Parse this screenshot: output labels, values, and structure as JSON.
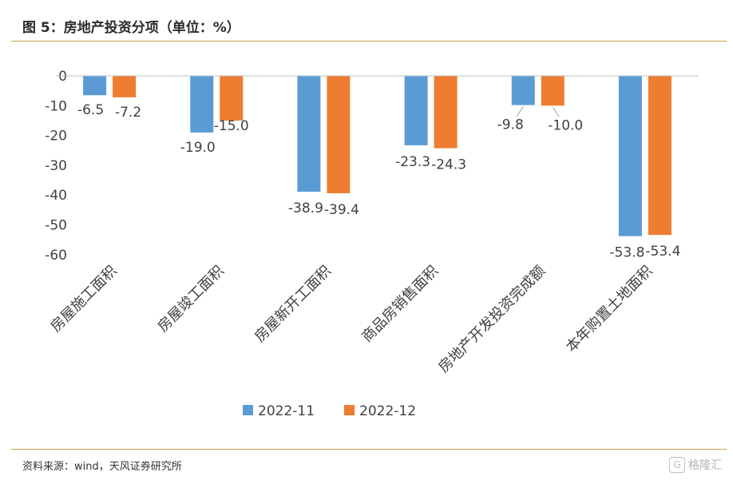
{
  "header": {
    "title": "图 5：房地产投资分项（单位：%）"
  },
  "footer": {
    "source": "资料来源：wind，天风证券研究所",
    "watermark": "格隆汇"
  },
  "chart_data": {
    "type": "bar",
    "categories": [
      "房屋施工面积",
      "房屋竣工面积",
      "房屋新开工面积",
      "商品房销售面积",
      "房地产开发投资完成额",
      "本年购置土地面积"
    ],
    "series": [
      {
        "name": "2022-11",
        "values": [
          -6.5,
          -19.0,
          -38.9,
          -23.3,
          -9.8,
          -53.8
        ],
        "labels": [
          "-6.5",
          "-19.0",
          "-38.9",
          "-23.3",
          "-9.8",
          "-53.8"
        ],
        "color": "#5b9bd5"
      },
      {
        "name": "2022-12",
        "values": [
          -7.2,
          -15.0,
          -39.4,
          -24.3,
          -10.0,
          -53.4
        ],
        "labels": [
          "-7.2",
          "-15.0",
          "-39.4",
          "-24.3",
          "-10.0",
          "-53.4"
        ],
        "color": "#ed7d31"
      }
    ],
    "yticks": [
      "0",
      "-10",
      "-20",
      "-30",
      "-40",
      "-50",
      "-60"
    ],
    "ylim": [
      -60,
      0
    ],
    "grid": false,
    "legend_position": "bottom"
  }
}
